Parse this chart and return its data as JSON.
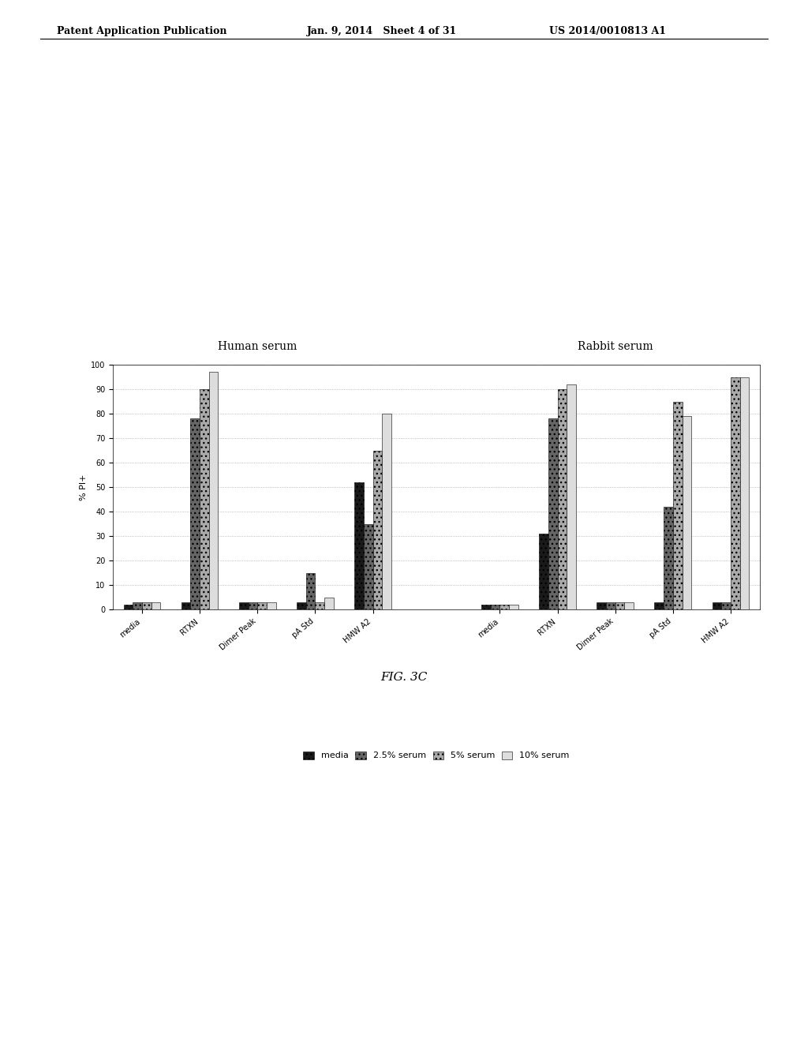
{
  "human_serum": {
    "categories": [
      "media",
      "RTXN",
      "Dimer Peak",
      "pA Std",
      "HMW A2"
    ],
    "media": [
      2,
      3,
      3,
      3,
      52
    ],
    "serum_2_5": [
      3,
      78,
      3,
      15,
      35
    ],
    "serum_5": [
      3,
      90,
      3,
      3,
      65
    ],
    "serum_10": [
      3,
      97,
      3,
      5,
      80
    ]
  },
  "rabbit_serum": {
    "categories": [
      "media",
      "RTXN",
      "Dimer Peak",
      "pA Std",
      "HMW A2"
    ],
    "media": [
      2,
      31,
      3,
      3,
      3
    ],
    "serum_2_5": [
      2,
      78,
      3,
      42,
      3
    ],
    "serum_5": [
      2,
      90,
      3,
      85,
      95
    ],
    "serum_10": [
      2,
      92,
      3,
      79,
      95
    ]
  },
  "colors": {
    "media": "#1a1a1a",
    "serum_2_5": "#666666",
    "serum_5": "#aaaaaa",
    "serum_10": "#dddddd"
  },
  "hatches": {
    "media": "...",
    "serum_2_5": "...",
    "serum_5": "...",
    "serum_10": ""
  },
  "ylabel": "% PI+",
  "ylim": [
    0,
    100
  ],
  "yticks": [
    0,
    10,
    20,
    30,
    40,
    50,
    60,
    70,
    80,
    90,
    100
  ],
  "title_human": "Human serum",
  "title_rabbit": "Rabbit serum",
  "legend_labels": [
    "media",
    "2.5% serum",
    "5% serum",
    "10% serum"
  ],
  "figure_caption": "FIG. 3C",
  "header_left": "Patent Application Publication",
  "header_mid": "Jan. 9, 2014   Sheet 4 of 31",
  "header_right": "US 2014/0010813 A1"
}
